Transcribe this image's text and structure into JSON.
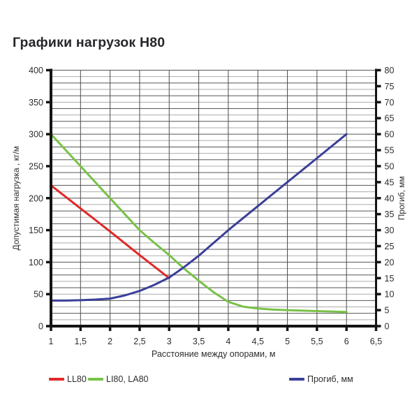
{
  "title": "Графики нагрузок Н80",
  "chart_data": {
    "type": "line",
    "title": "Графики нагрузок Н80",
    "grid": {
      "visible": true,
      "h_minor_step": 10,
      "v_step": 0.5
    },
    "x_axis": {
      "label": "Расстояние между опорами, м",
      "range": [
        1,
        6.5
      ],
      "tick_step": 0.5,
      "tick_labels": [
        "1",
        "1,5",
        "2",
        "2,5",
        "3",
        "3,5",
        "4",
        "4,5",
        "5",
        "5,5",
        "6",
        "6,5"
      ]
    },
    "y_axis_left": {
      "label": "Допустимая нагрузка , кг/м",
      "range": [
        0,
        400
      ],
      "tick_step": 50,
      "tick_labels": [
        "0",
        "50",
        "100",
        "150",
        "200",
        "250",
        "300",
        "350",
        "400"
      ]
    },
    "y_axis_right": {
      "label": "Прогиб, мм",
      "range": [
        0,
        80
      ],
      "tick_step": 5,
      "tick_labels": [
        "0",
        "5",
        "10",
        "15",
        "20",
        "25",
        "30",
        "35",
        "40",
        "45",
        "50",
        "55",
        "60",
        "65",
        "70",
        "75",
        "80"
      ]
    },
    "series": [
      {
        "id": "li80-la80",
        "name": "LI80, LA80",
        "axis": "left",
        "color": "#79c147",
        "points": [
          [
            1,
            300
          ],
          [
            1.5,
            250
          ],
          [
            2,
            200
          ],
          [
            2.5,
            150
          ],
          [
            2.75,
            130
          ],
          [
            3,
            111
          ],
          [
            3.25,
            90
          ],
          [
            3.5,
            71
          ],
          [
            3.75,
            53
          ],
          [
            4,
            38
          ],
          [
            4.25,
            30.5
          ],
          [
            4.5,
            27.5
          ],
          [
            4.75,
            26
          ],
          [
            5,
            25
          ],
          [
            5.5,
            23.5
          ],
          [
            6,
            22
          ]
        ]
      },
      {
        "id": "ll80",
        "name": "LL80",
        "axis": "left",
        "color": "#e02828",
        "points": [
          [
            1,
            220
          ],
          [
            1.5,
            184
          ],
          [
            2,
            148
          ],
          [
            2.5,
            111
          ],
          [
            3,
            75
          ]
        ]
      },
      {
        "id": "progib",
        "name": "Прогиб, мм",
        "axis": "right",
        "color": "#3a3f99",
        "points": [
          [
            1,
            8
          ],
          [
            1.25,
            8
          ],
          [
            1.5,
            8.1
          ],
          [
            1.75,
            8.3
          ],
          [
            2,
            8.6
          ],
          [
            2.25,
            9.6
          ],
          [
            2.5,
            11
          ],
          [
            2.75,
            12.9
          ],
          [
            3,
            15.2
          ],
          [
            3.25,
            18.4
          ],
          [
            3.5,
            22
          ],
          [
            3.75,
            26
          ],
          [
            4,
            30
          ],
          [
            4.5,
            37.5
          ],
          [
            5,
            45
          ],
          [
            5.5,
            52.5
          ],
          [
            6,
            60
          ]
        ]
      }
    ],
    "legend_position": "bottom",
    "colors": {
      "grid_dark": "#565656",
      "grid_light": "#ababab",
      "grid_vertical": "#4a4a4a",
      "axis": "#141414",
      "text": "#2e2e2e"
    }
  },
  "legend": {
    "items": [
      {
        "label": "LL80",
        "color": "#e02828"
      },
      {
        "label": "LI80, LA80",
        "color": "#79c147"
      },
      {
        "label": "Прогиб, мм",
        "color": "#3a3f99"
      }
    ]
  }
}
